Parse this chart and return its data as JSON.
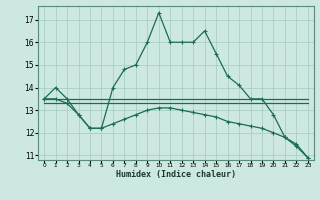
{
  "xlabel": "Humidex (Indice chaleur)",
  "xlim": [
    -0.5,
    23.5
  ],
  "ylim": [
    10.8,
    17.6
  ],
  "yticks": [
    11,
    12,
    13,
    14,
    15,
    16,
    17
  ],
  "xticks": [
    0,
    1,
    2,
    3,
    4,
    5,
    6,
    7,
    8,
    9,
    10,
    11,
    12,
    13,
    14,
    15,
    16,
    17,
    18,
    19,
    20,
    21,
    22,
    23
  ],
  "background_color": "#cce8e0",
  "grid_color": "#aacec6",
  "line_color": "#1a6b5a",
  "series1_y": [
    13.5,
    14.0,
    13.5,
    12.8,
    12.2,
    12.2,
    14.0,
    14.8,
    15.0,
    16.0,
    17.3,
    16.0,
    16.0,
    16.0,
    16.5,
    15.5,
    14.5,
    14.1,
    13.5,
    13.5,
    12.8,
    11.8,
    11.5,
    10.9
  ],
  "series2_y": [
    13.5,
    13.5,
    13.5,
    13.5,
    13.5,
    13.5,
    13.5,
    13.5,
    13.5,
    13.5,
    13.5,
    13.5,
    13.5,
    13.5,
    13.5,
    13.5,
    13.5,
    13.5,
    13.5,
    13.5,
    13.5,
    13.5,
    13.5,
    13.5
  ],
  "series3_y": [
    13.3,
    13.3,
    13.3,
    13.3,
    13.3,
    13.3,
    13.3,
    13.3,
    13.3,
    13.3,
    13.3,
    13.3,
    13.3,
    13.3,
    13.3,
    13.3,
    13.3,
    13.3,
    13.3,
    13.3,
    13.3,
    13.3,
    13.3,
    13.3
  ],
  "series4_y": [
    13.5,
    13.5,
    13.3,
    12.8,
    12.2,
    12.2,
    12.4,
    12.6,
    12.8,
    13.0,
    13.1,
    13.1,
    13.0,
    12.9,
    12.8,
    12.7,
    12.5,
    12.4,
    12.3,
    12.2,
    12.0,
    11.8,
    11.4,
    10.9
  ]
}
